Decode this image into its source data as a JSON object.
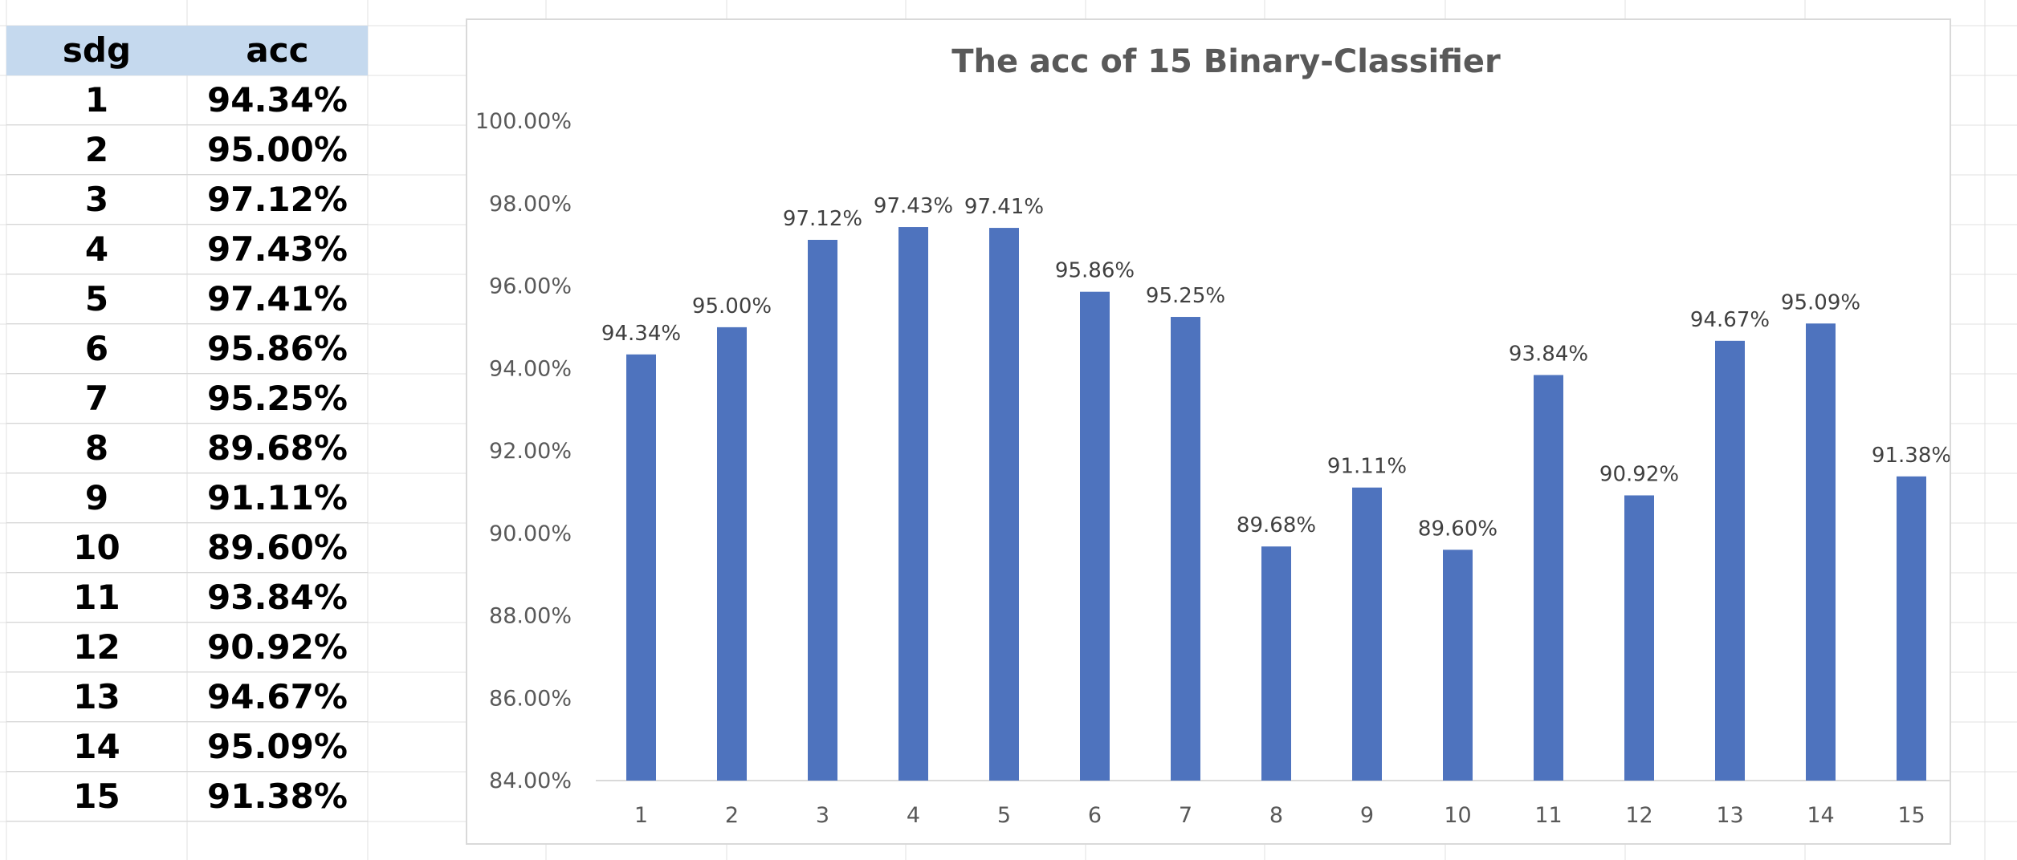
{
  "spreadsheet": {
    "headers": [
      "sdg",
      "acc"
    ],
    "header_fill": "#c5d9ee",
    "rows": [
      [
        "1",
        "94.34%"
      ],
      [
        "2",
        "95.00%"
      ],
      [
        "3",
        "97.12%"
      ],
      [
        "4",
        "97.43%"
      ],
      [
        "5",
        "97.41%"
      ],
      [
        "6",
        "95.86%"
      ],
      [
        "7",
        "95.25%"
      ],
      [
        "8",
        "89.68%"
      ],
      [
        "9",
        "91.11%"
      ],
      [
        "10",
        "89.60%"
      ],
      [
        "11",
        "93.84%"
      ],
      [
        "12",
        "90.92%"
      ],
      [
        "13",
        "94.67%"
      ],
      [
        "14",
        "95.09%"
      ],
      [
        "15",
        "91.38%"
      ]
    ]
  },
  "chart_data": {
    "type": "bar",
    "title": "The acc of 15 Binary-Classifier",
    "categories": [
      "1",
      "2",
      "3",
      "4",
      "5",
      "6",
      "7",
      "8",
      "9",
      "10",
      "11",
      "12",
      "13",
      "14",
      "15"
    ],
    "values": [
      94.34,
      95.0,
      97.12,
      97.43,
      97.41,
      95.86,
      95.25,
      89.68,
      91.11,
      89.6,
      93.84,
      90.92,
      94.67,
      95.09,
      91.38
    ],
    "data_labels": [
      "94.34%",
      "95.00%",
      "97.12%",
      "97.43%",
      "97.41%",
      "95.86%",
      "95.25%",
      "89.68%",
      "91.11%",
      "89.60%",
      "93.84%",
      "90.92%",
      "94.67%",
      "95.09%",
      "91.38%"
    ],
    "y_ticks": [
      "84.00%",
      "86.00%",
      "88.00%",
      "90.00%",
      "92.00%",
      "94.00%",
      "96.00%",
      "98.00%",
      "100.00%"
    ],
    "ylim": [
      84,
      100
    ],
    "xlabel": "",
    "ylabel": "",
    "legend": "none",
    "grid": false,
    "bar_color": "#4e73be"
  }
}
